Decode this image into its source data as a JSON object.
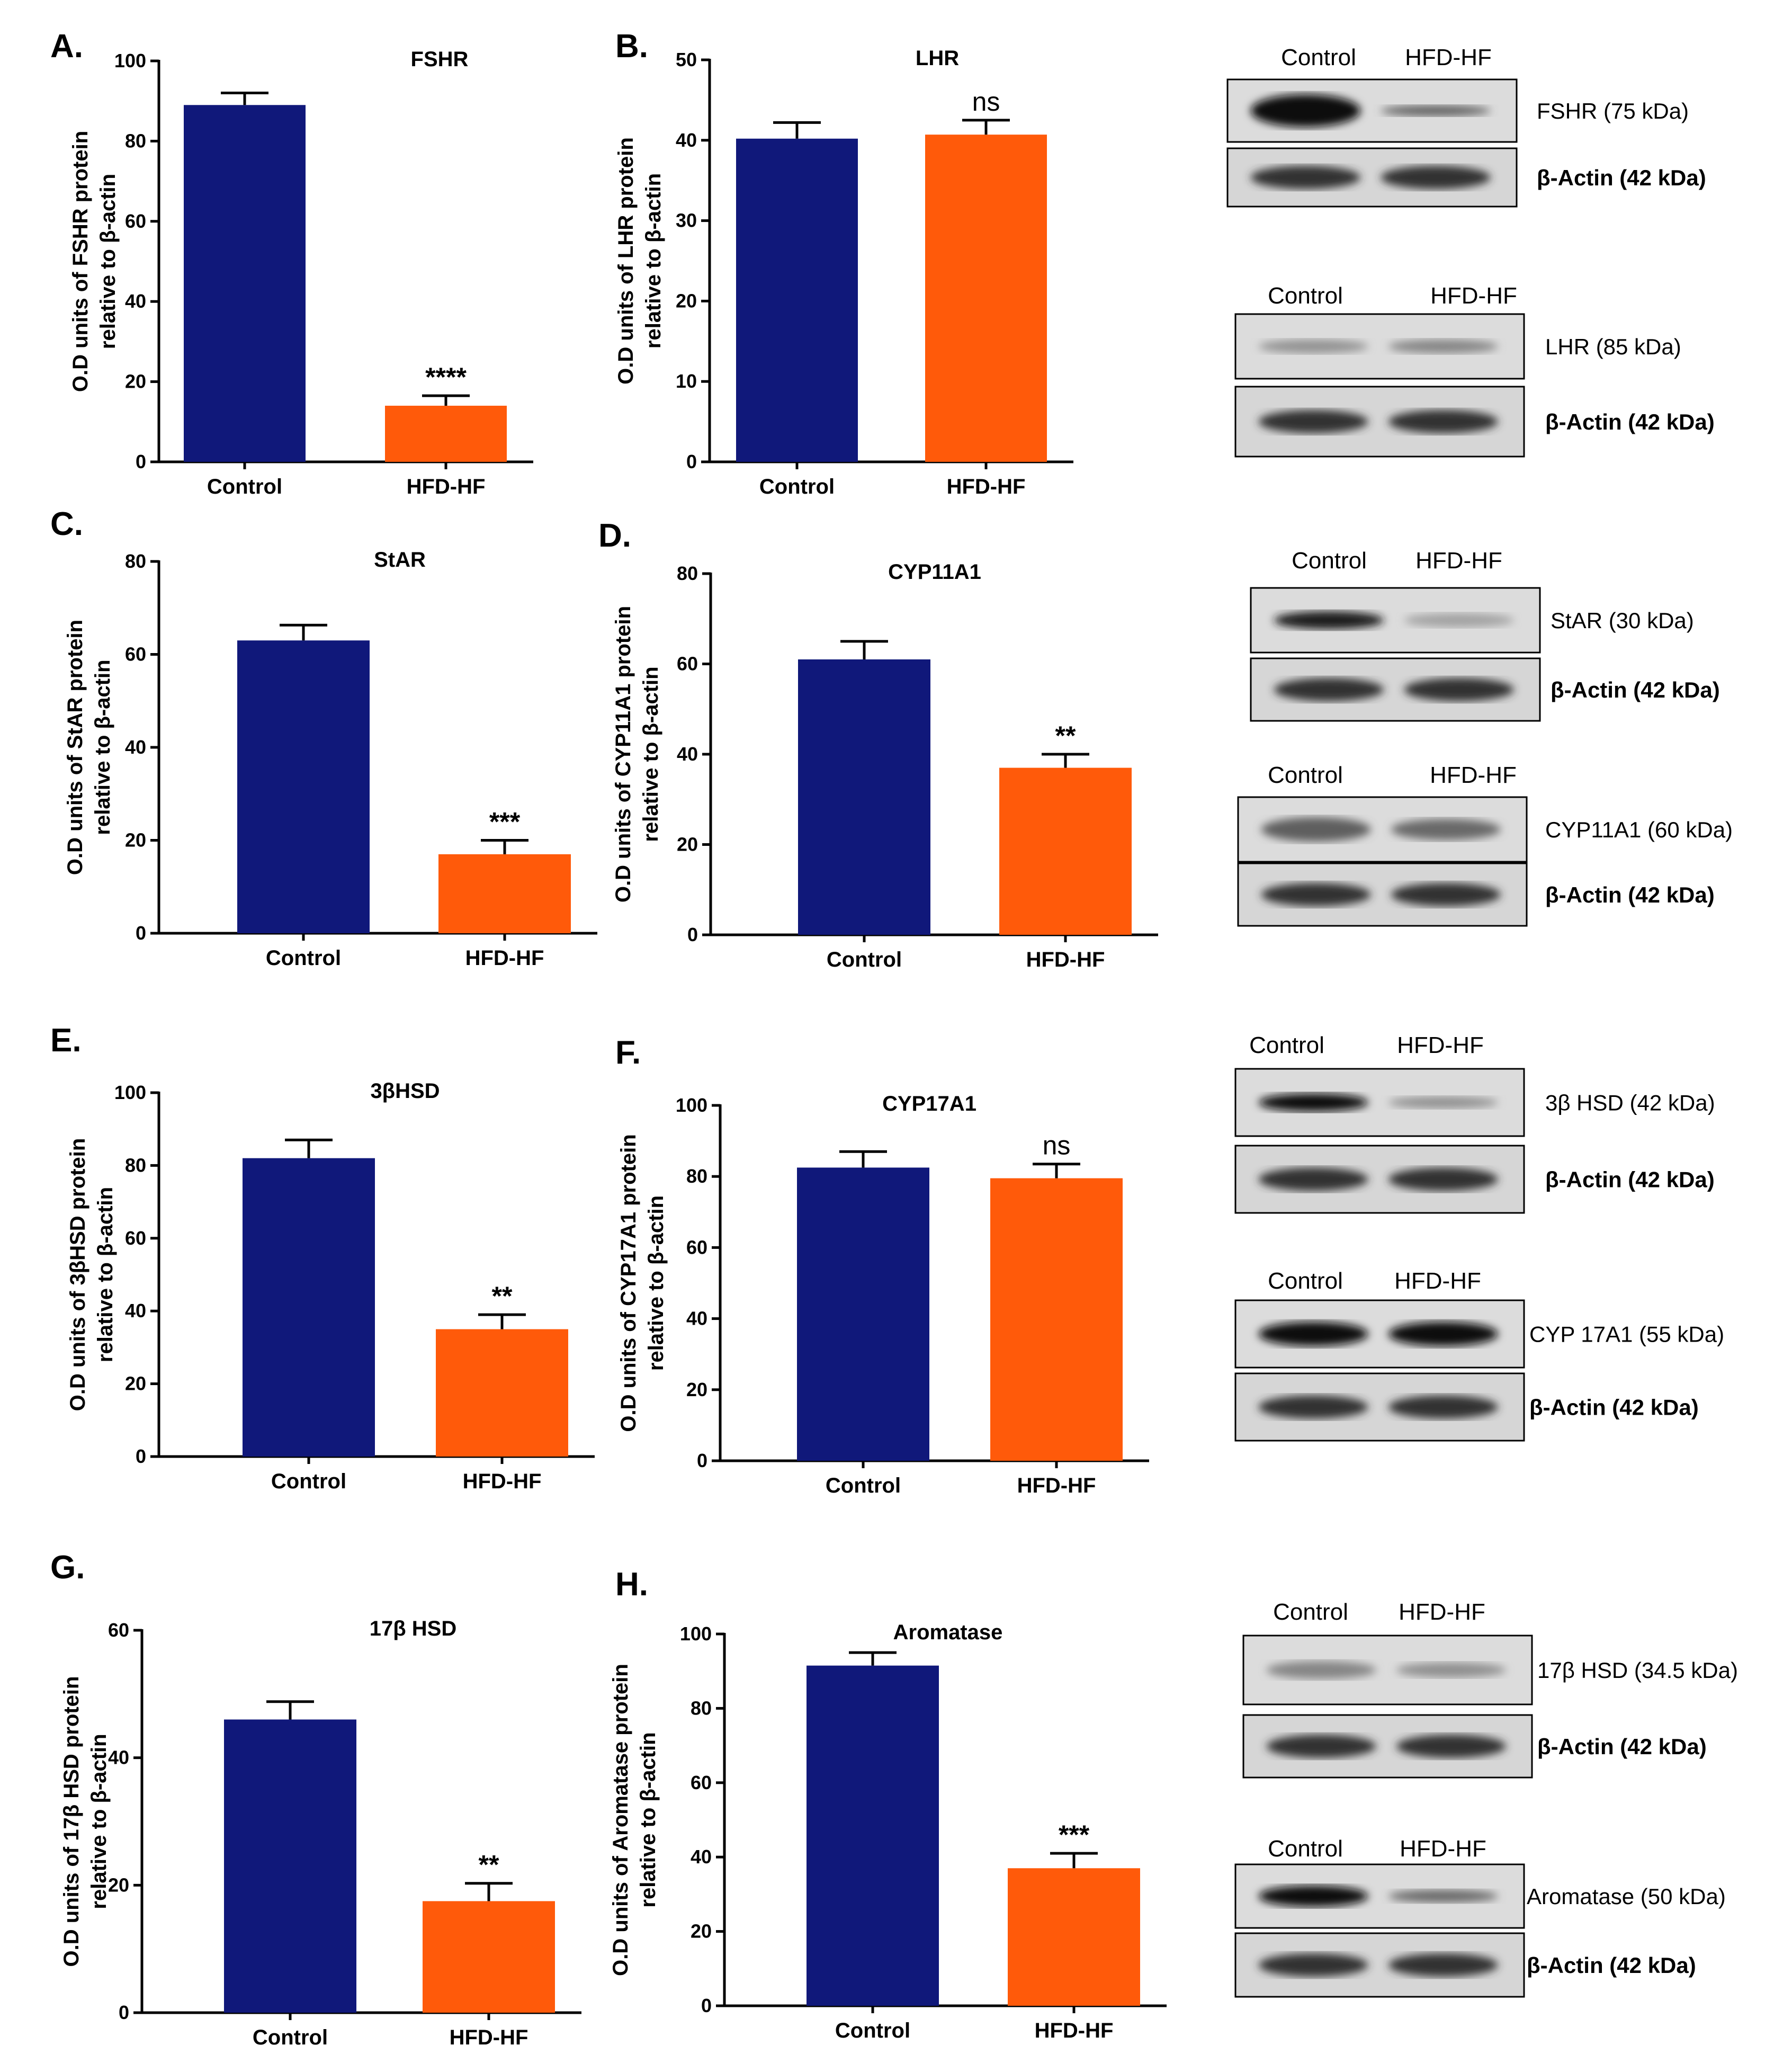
{
  "colors": {
    "control": "#10187a",
    "hfd_hf": "#ff5a0a",
    "axis": "#000000"
  },
  "chart_data": [
    {
      "panel": "A.",
      "type": "bar",
      "title": "FSHR",
      "ylabel": [
        "O.D units of FSHR protein",
        "relative to β-actin"
      ],
      "categories": [
        "Control",
        "HFD-HF"
      ],
      "values": [
        89,
        14
      ],
      "errors": [
        3,
        2.5
      ],
      "ylim": [
        0,
        100
      ],
      "yticks": [
        0,
        20,
        40,
        60,
        80,
        100
      ],
      "significance": [
        "",
        "****"
      ]
    },
    {
      "panel": "B.",
      "type": "bar",
      "title": "LHR",
      "ylabel": [
        "O.D units of LHR protein",
        "relative to β-actin"
      ],
      "categories": [
        "Control",
        "HFD-HF"
      ],
      "values": [
        40.2,
        40.7
      ],
      "errors": [
        2,
        1.8
      ],
      "ylim": [
        0,
        50
      ],
      "yticks": [
        0,
        10,
        20,
        30,
        40,
        50
      ],
      "significance": [
        "",
        "ns"
      ]
    },
    {
      "panel": "C.",
      "type": "bar",
      "title": "StAR",
      "ylabel": [
        "O.D units of StAR protein",
        "relative to β-actin"
      ],
      "categories": [
        "Control",
        "HFD-HF"
      ],
      "values": [
        63,
        17
      ],
      "errors": [
        3.3,
        3
      ],
      "ylim": [
        0,
        80
      ],
      "yticks": [
        0,
        20,
        40,
        60,
        80
      ],
      "significance": [
        "",
        "***"
      ]
    },
    {
      "panel": "D.",
      "type": "bar",
      "title": "CYP11A1",
      "ylabel": [
        "O.D units of CYP11A1 protein",
        "relative to β-actin"
      ],
      "categories": [
        "Control",
        "HFD-HF"
      ],
      "values": [
        61,
        37
      ],
      "errors": [
        4,
        3
      ],
      "ylim": [
        0,
        80
      ],
      "yticks": [
        0,
        20,
        40,
        60,
        80
      ],
      "significance": [
        "",
        "**"
      ]
    },
    {
      "panel": "E.",
      "type": "bar",
      "title": "3βHSD",
      "ylabel": [
        "O.D units of 3βHSD protein",
        "relative to β-actin"
      ],
      "categories": [
        "Control",
        "HFD-HF"
      ],
      "values": [
        82,
        35
      ],
      "errors": [
        5,
        4
      ],
      "ylim": [
        0,
        100
      ],
      "yticks": [
        0,
        20,
        40,
        60,
        80,
        100
      ],
      "significance": [
        "",
        "**"
      ]
    },
    {
      "panel": "F.",
      "type": "bar",
      "title": "CYP17A1",
      "ylabel": [
        "O.D units of CYP17A1 protein",
        "relative to β-actin"
      ],
      "categories": [
        "Control",
        "HFD-HF"
      ],
      "values": [
        82.5,
        79.5
      ],
      "errors": [
        4.5,
        4
      ],
      "ylim": [
        0,
        100
      ],
      "yticks": [
        0,
        20,
        40,
        60,
        80,
        100
      ],
      "significance": [
        "",
        "ns"
      ]
    },
    {
      "panel": "G.",
      "type": "bar",
      "title": "17β HSD",
      "ylabel": [
        "O.D units of 17β HSD protein",
        "relative to β-actin"
      ],
      "categories": [
        "Control",
        "HFD-HF"
      ],
      "values": [
        46,
        17.5
      ],
      "errors": [
        2.8,
        2.8
      ],
      "ylim": [
        0,
        60
      ],
      "yticks": [
        0,
        20,
        40,
        60
      ],
      "significance": [
        "",
        "**"
      ]
    },
    {
      "panel": "H.",
      "type": "bar",
      "title": "Aromatase",
      "ylabel": [
        "O.D units of Aromatase protein",
        "relative to β-actin"
      ],
      "categories": [
        "Control",
        "HFD-HF"
      ],
      "values": [
        91.5,
        37
      ],
      "errors": [
        3.5,
        4
      ],
      "ylim": [
        0,
        100
      ],
      "yticks": [
        0,
        20,
        40,
        60,
        80,
        100
      ],
      "significance": [
        "",
        "***"
      ]
    }
  ],
  "blots": [
    {
      "lanes": [
        "Control",
        "HFD-HF"
      ],
      "target": "FSHR  (75 kDa)",
      "loading": "β-Actin (42 kDa)"
    },
    {
      "lanes": [
        "Control",
        "HFD-HF"
      ],
      "target": "LHR  (85 kDa)",
      "loading": "β-Actin (42 kDa)"
    },
    {
      "lanes": [
        "Control",
        "HFD-HF"
      ],
      "target": "StAR (30 kDa)",
      "loading": "β-Actin (42 kDa)"
    },
    {
      "lanes": [
        "Control",
        "HFD-HF"
      ],
      "target": "CYP11A1 (60 kDa)",
      "loading": "β-Actin (42 kDa)"
    },
    {
      "lanes": [
        "Control",
        "HFD-HF"
      ],
      "target": "3β HSD  (42 kDa)",
      "loading": "β-Actin (42 kDa)"
    },
    {
      "lanes": [
        "Control",
        "HFD-HF"
      ],
      "target": "CYP 17A1 (55 kDa)",
      "loading": "β-Actin (42 kDa)"
    },
    {
      "lanes": [
        "Control",
        "HFD-HF"
      ],
      "target": "17β HSD  (34.5 kDa)",
      "loading": "β-Actin (42 kDa)"
    },
    {
      "lanes": [
        "Control",
        "HFD-HF"
      ],
      "target": "Aromatase (50 kDa)",
      "loading": "β-Actin (42 kDa)"
    }
  ]
}
